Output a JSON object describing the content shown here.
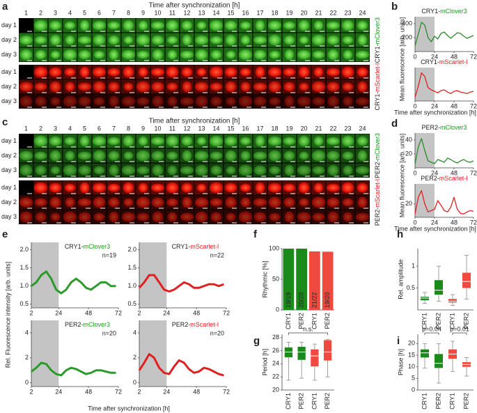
{
  "panel_letters": [
    "a",
    "b",
    "c",
    "d",
    "e",
    "f",
    "g",
    "h",
    "i"
  ],
  "micrographs": [
    {
      "title": "Time after synchronization [h]",
      "hours": [
        1,
        2,
        3,
        4,
        5,
        6,
        7,
        8,
        9,
        10,
        11,
        12,
        13,
        14,
        15,
        16,
        17,
        18,
        19,
        20,
        21,
        22,
        23,
        24
      ],
      "days": [
        "day 1",
        "day 2",
        "day 3"
      ],
      "channels": [
        {
          "label": [
            "CRY1-",
            "mClover3"
          ],
          "color": "#1a9a1a"
        },
        {
          "label": [
            "CRY1-",
            "mScarlet-I"
          ],
          "color": "#e02020"
        }
      ]
    },
    {
      "title": "Time after synchronization [h]",
      "hours": [
        1,
        2,
        3,
        4,
        5,
        6,
        7,
        8,
        9,
        10,
        11,
        12,
        13,
        14,
        15,
        16,
        17,
        18,
        19,
        20,
        21,
        22,
        23,
        24
      ],
      "days": [
        "day 1",
        "day 2",
        "day 3"
      ],
      "channels": [
        {
          "label": [
            "PER2-",
            "mClover3"
          ],
          "color": "#1a9a1a"
        },
        {
          "label": [
            "PER2-",
            "mScarlet-I"
          ],
          "color": "#e02020"
        }
      ]
    }
  ],
  "shared_labels": {
    "b_y": "Mean fluorescence [arb. units]",
    "b_x": "Time after synchronization [h]",
    "d_y": "Mean fluorescence [arb. units]",
    "d_x": "Time after synchronization [h]",
    "e_y": "Rel. Fluorescence intensity [arb. units]",
    "e_x": "Time after synchronization [h]"
  },
  "chart_data": [
    {
      "type": "line",
      "title": [
        "CRY1-",
        "mClover3"
      ],
      "title_color": "#1a9a1a",
      "x": [
        0,
        4,
        8,
        12,
        16,
        20,
        24,
        28,
        32,
        36,
        40,
        44,
        48,
        52,
        56,
        60,
        64,
        68,
        72
      ],
      "series": [
        {
          "color": "#2a8a2a",
          "values": [
            80,
            250,
            420,
            380,
            200,
            140,
            220,
            180,
            260,
            280,
            230,
            190,
            230,
            270,
            260,
            220,
            190,
            210,
            230
          ]
        }
      ],
      "shaded": [
        0,
        24
      ],
      "xlim": [
        0,
        72
      ],
      "xticks": [
        0,
        24,
        48,
        72
      ],
      "ylim": [
        0,
        500
      ],
      "yticks": [
        200,
        400
      ]
    },
    {
      "type": "line",
      "title": [
        "CRY1-",
        "mScarlet-I"
      ],
      "title_color": "#e02020",
      "x": [
        0,
        4,
        8,
        12,
        16,
        20,
        24,
        28,
        32,
        36,
        40,
        44,
        48,
        52,
        56,
        60,
        64,
        68,
        72
      ],
      "series": [
        {
          "color": "#e02020",
          "values": [
            50,
            200,
            380,
            330,
            180,
            150,
            130,
            110,
            140,
            150,
            120,
            100,
            130,
            140,
            120,
            110,
            100,
            120,
            130
          ]
        }
      ],
      "shaded": [
        0,
        24
      ],
      "xlim": [
        0,
        72
      ],
      "xticks": [
        0,
        24,
        48,
        72
      ],
      "ylim": [
        0,
        450
      ]
    },
    {
      "type": "line",
      "title": [
        "PER2-",
        "mClover3"
      ],
      "title_color": "#1a9a1a",
      "x": [
        0,
        4,
        8,
        12,
        16,
        20,
        24,
        28,
        32,
        36,
        40,
        44,
        48,
        52,
        56,
        60,
        64,
        68,
        72
      ],
      "series": [
        {
          "color": "#2a8a2a",
          "values": [
            5,
            30,
            42,
            25,
            10,
            8,
            6,
            12,
            10,
            8,
            14,
            12,
            9,
            7,
            10,
            12,
            9,
            8,
            10
          ]
        }
      ],
      "shaded": [
        0,
        24
      ],
      "xlim": [
        0,
        72
      ],
      "xticks": [
        0,
        24,
        48,
        72
      ],
      "ylim": [
        0,
        50
      ],
      "yticks": [
        20,
        40
      ]
    },
    {
      "type": "line",
      "title": [
        "PER2-",
        "mScarlet-I"
      ],
      "title_color": "#e02020",
      "x": [
        0,
        4,
        8,
        12,
        16,
        20,
        24,
        28,
        32,
        36,
        40,
        44,
        48,
        52,
        56,
        60,
        64,
        68,
        72
      ],
      "series": [
        {
          "color": "#e02020",
          "values": [
            5,
            30,
            40,
            20,
            8,
            10,
            12,
            25,
            18,
            10,
            8,
            15,
            30,
            12,
            6,
            5,
            8,
            10,
            9
          ]
        }
      ],
      "shaded": [
        0,
        24
      ],
      "xlim": [
        0,
        72
      ],
      "xticks": [
        0,
        24,
        48,
        72
      ],
      "ylim": [
        0,
        50
      ],
      "yticks": [
        20
      ]
    },
    {
      "type": "line",
      "title": [
        "CRY1-",
        "mClover3"
      ],
      "title_color": "#1a9a1a",
      "annotation": "n=19",
      "x": [
        2,
        6,
        10,
        14,
        18,
        22,
        26,
        30,
        34,
        38,
        42,
        46,
        50,
        54,
        58,
        62,
        66,
        70
      ],
      "series": [
        {
          "color": "#2a9a2a",
          "values": [
            1.0,
            1.1,
            1.3,
            1.4,
            1.2,
            0.9,
            0.8,
            0.9,
            1.1,
            1.2,
            1.1,
            0.95,
            0.9,
            1.0,
            1.1,
            1.1,
            1.0,
            1.0
          ]
        }
      ],
      "shaded": [
        2,
        24
      ],
      "xlim": [
        2,
        72
      ],
      "xticks": [
        2,
        24,
        48,
        72
      ],
      "ylim": [
        0.4,
        2.2
      ],
      "yticks": [
        0.5,
        {
          "value": 1,
          "label": "1.0"
        },
        1.5,
        {
          "value": 2,
          "label": "2.0"
        }
      ]
    },
    {
      "type": "line",
      "title": [
        "CRY1-",
        "mScarlet-I"
      ],
      "title_color": "#e02020",
      "annotation": "n=22",
      "x": [
        2,
        6,
        10,
        14,
        18,
        22,
        26,
        30,
        34,
        38,
        42,
        46,
        50,
        54,
        58,
        62,
        66,
        70
      ],
      "series": [
        {
          "color": "#e02020",
          "values": [
            0.95,
            1.1,
            1.3,
            1.3,
            1.1,
            0.9,
            0.85,
            0.9,
            1.0,
            1.1,
            1.05,
            0.95,
            0.95,
            1.0,
            1.05,
            1.05,
            1.0,
            1.05
          ]
        }
      ],
      "shaded": [
        2,
        24
      ],
      "xlim": [
        2,
        72
      ],
      "xticks": [
        2,
        24,
        48,
        72
      ],
      "ylim": [
        0.4,
        2.2
      ],
      "yticks": [
        0.5,
        {
          "value": 1,
          "label": "1.0"
        },
        1.5,
        {
          "value": 2,
          "label": "2.0"
        }
      ]
    },
    {
      "type": "line",
      "title": [
        "PER2-",
        "mClover3"
      ],
      "title_color": "#1a9a1a",
      "annotation": "n=20",
      "x": [
        2,
        6,
        10,
        14,
        18,
        22,
        26,
        30,
        34,
        38,
        42,
        46,
        50,
        54,
        58,
        62,
        66,
        70
      ],
      "series": [
        {
          "color": "#2a9a2a",
          "values": [
            0.9,
            1.2,
            1.6,
            1.5,
            1.0,
            0.7,
            0.6,
            1.0,
            1.2,
            1.1,
            0.9,
            0.7,
            0.8,
            1.0,
            1.0,
            0.9,
            0.8,
            0.8
          ]
        }
      ],
      "shaded": [
        2,
        24
      ],
      "xlim": [
        2,
        72
      ],
      "xticks": [
        2,
        24,
        48,
        72
      ],
      "ylim": [
        -0.3,
        5
      ],
      "yticks": [
        0,
        2,
        4
      ]
    },
    {
      "type": "line",
      "title": [
        "PER2-",
        "mScarlet-I"
      ],
      "title_color": "#e02020",
      "annotation": "n=20",
      "x": [
        2,
        6,
        10,
        14,
        18,
        22,
        26,
        30,
        34,
        38,
        42,
        46,
        50,
        54,
        58,
        62,
        66,
        70
      ],
      "series": [
        {
          "color": "#e02020",
          "values": [
            1.0,
            1.6,
            2.3,
            2.0,
            1.2,
            0.8,
            0.7,
            1.3,
            1.8,
            1.6,
            1.1,
            0.8,
            0.9,
            1.2,
            1.1,
            0.9,
            0.7,
            0.6
          ]
        }
      ],
      "shaded": [
        2,
        24
      ],
      "xlim": [
        2,
        72
      ],
      "xticks": [
        2,
        24,
        48,
        72
      ],
      "ylim": [
        -0.3,
        5
      ],
      "yticks": [
        0,
        2,
        4
      ]
    },
    {
      "type": "bar",
      "ylabel": "Rhythmic [%]",
      "categories": [
        "CRY1",
        "PER2",
        "CRY1",
        "PER2"
      ],
      "values": [
        100,
        100,
        95.45,
        95
      ],
      "value_labels": [
        "19/19",
        "20/20",
        "21/22",
        "19/20"
      ],
      "colors": [
        "#1a8a1a",
        "#1a8a1a",
        "#ef4a40",
        "#ef4a40"
      ],
      "ylim": [
        0,
        100
      ],
      "yticks": [
        0,
        50,
        100
      ]
    },
    {
      "type": "box",
      "ylabel": "Period [h]",
      "categories": [
        "CRY1",
        "PER2",
        "CRY1",
        "PER2"
      ],
      "colors": [
        "#1a8a1a",
        "#1a8a1a",
        "#ef4a40",
        "#ef4a40"
      ],
      "stats": {
        "min": [
          21.5,
          21.8,
          21.5,
          22
        ],
        "q1": [
          25,
          24.6,
          23.6,
          24.5
        ],
        "median": [
          25.8,
          25.8,
          25.2,
          25.8
        ],
        "q3": [
          26.5,
          26.6,
          26.2,
          27.6
        ],
        "max": [
          27.3,
          27.3,
          27,
          27.7
        ]
      },
      "annotations": [
        "n.s."
      ],
      "ylim": [
        20,
        28.5
      ],
      "yticks": [
        20,
        22,
        24,
        26,
        28
      ]
    },
    {
      "type": "box",
      "ylabel": "Rel. amplitude",
      "categories": [
        "CRY1",
        "PER2",
        "CRY1",
        "PER2"
      ],
      "colors": [
        "#1a8a1a",
        "#1a8a1a",
        "#ef4a40",
        "#ef4a40"
      ],
      "stats": {
        "min": [
          0.15,
          0.2,
          0.1,
          0.25
        ],
        "q1": [
          0.22,
          0.35,
          0.17,
          0.5
        ],
        "median": [
          0.27,
          0.45,
          0.2,
          0.65
        ],
        "q3": [
          0.3,
          0.68,
          0.25,
          0.85
        ],
        "max": [
          0.4,
          1.0,
          0.35,
          1.25
        ]
      },
      "ylim": [
        0,
        1.4
      ],
      "yticks": [
        0.5,
        1
      ]
    },
    {
      "type": "box",
      "ylabel": "Phase [h]",
      "categories": [
        "CRY1",
        "PER2",
        "CRY1",
        "PER2"
      ],
      "colors": [
        "#1a8a1a",
        "#1a8a1a",
        "#ef4a40",
        "#ef4a40"
      ],
      "stats": {
        "min": [
          9.5,
          3,
          8,
          6
        ],
        "q1": [
          14,
          9.5,
          13.5,
          10
        ],
        "median": [
          16,
          11.5,
          15.5,
          11
        ],
        "q3": [
          17.5,
          15.5,
          17.5,
          12
        ],
        "max": [
          20,
          20,
          21,
          14
        ]
      },
      "annotations": [
        "p=0.04",
        "p=0.01"
      ],
      "ylim": [
        0,
        24
      ],
      "yticks": [
        0,
        5,
        10,
        15,
        20
      ]
    }
  ]
}
